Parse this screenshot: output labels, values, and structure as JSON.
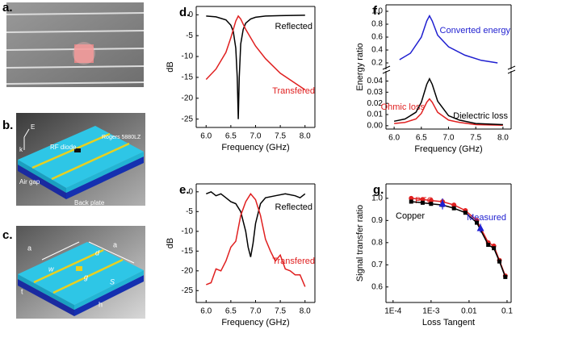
{
  "illustrations": [
    {
      "panel_label": "a."
    },
    {
      "panel_label": "b.",
      "labels": [
        "E",
        "k",
        "Rogers 5880LZ",
        "RF diode",
        "Air gap",
        "Back plate"
      ]
    },
    {
      "panel_label": "c.",
      "labels": [
        "a",
        "a",
        "d",
        "w",
        "g",
        "S",
        "t",
        "h"
      ]
    }
  ],
  "chart_data": [
    {
      "type": "line",
      "panel_label": "d.",
      "xlabel": "Frequency (GHz)",
      "ylabel": "dB",
      "xlim": [
        5.8,
        8.2
      ],
      "xticks": [
        {
          "value": 6,
          "label": "6.0"
        },
        {
          "value": 6.5,
          "label": "6.5"
        },
        {
          "value": 7,
          "label": "7.0"
        },
        {
          "value": 7.5,
          "label": "7.5"
        },
        {
          "value": 8,
          "label": "8.0"
        }
      ],
      "ylim": [
        -27,
        2
      ],
      "yticks": [
        0,
        -5,
        -10,
        -15,
        -20,
        -25
      ],
      "series": [
        {
          "name": "Reflected",
          "color": "#000000",
          "x": [
            6.0,
            6.2,
            6.4,
            6.5,
            6.55,
            6.6,
            6.63,
            6.65,
            6.67,
            6.7,
            6.75,
            6.8,
            6.9,
            7.0,
            7.2,
            7.5,
            8.0
          ],
          "values": [
            -0.3,
            -0.5,
            -1.2,
            -2.5,
            -4,
            -8,
            -15,
            -25,
            -15,
            -7,
            -3.5,
            -2,
            -1,
            -0.6,
            -0.3,
            -0.2,
            -0.1
          ]
        },
        {
          "name": "Transfered",
          "color": "#e02020",
          "x": [
            6.0,
            6.2,
            6.4,
            6.5,
            6.6,
            6.65,
            6.7,
            6.8,
            7.0,
            7.2,
            7.5,
            8.0
          ],
          "values": [
            -15.5,
            -13,
            -9,
            -5.5,
            -1.5,
            -0.3,
            -1,
            -3.5,
            -7.5,
            -10.5,
            -14,
            -18
          ]
        }
      ]
    },
    {
      "type": "line",
      "panel_label": "e.",
      "xlabel": "Frequency (GHz)",
      "ylabel": "dB",
      "xlim": [
        5.8,
        8.2
      ],
      "xticks": [
        {
          "value": 6,
          "label": "6.0"
        },
        {
          "value": 6.5,
          "label": "6.5"
        },
        {
          "value": 7,
          "label": "7.0"
        },
        {
          "value": 7.5,
          "label": "7.5"
        },
        {
          "value": 8,
          "label": "8.0"
        }
      ],
      "ylim": [
        -28,
        2
      ],
      "yticks": [
        0,
        -5,
        -10,
        -15,
        -20,
        -25
      ],
      "series": [
        {
          "name": "Reflected",
          "color": "#000000",
          "x": [
            6.0,
            6.1,
            6.2,
            6.3,
            6.4,
            6.5,
            6.6,
            6.7,
            6.8,
            6.85,
            6.9,
            6.95,
            7.0,
            7.1,
            7.2,
            7.4,
            7.6,
            7.8,
            7.9,
            8.0
          ],
          "values": [
            -0.5,
            0,
            -1,
            -0.5,
            -1.5,
            -2.5,
            -3,
            -5,
            -10,
            -14,
            -16.5,
            -13,
            -8,
            -3,
            -1.5,
            -1,
            -0.5,
            -1,
            -1.5,
            -0.5
          ]
        },
        {
          "name": "Transfered",
          "color": "#e02020",
          "x": [
            6.0,
            6.1,
            6.2,
            6.3,
            6.4,
            6.5,
            6.6,
            6.7,
            6.8,
            6.9,
            7.0,
            7.1,
            7.2,
            7.3,
            7.4,
            7.5,
            7.6,
            7.7,
            7.8,
            7.9,
            8.0
          ],
          "values": [
            -23.5,
            -23,
            -19.5,
            -20,
            -17.5,
            -14,
            -12.5,
            -6,
            -2.5,
            -0.5,
            -2,
            -6,
            -12,
            -15,
            -17.5,
            -16,
            -19.5,
            -20,
            -21,
            -21,
            -24
          ]
        }
      ]
    },
    {
      "type": "line",
      "panel_label": "f.",
      "ylabel": "Energy ratio",
      "xlim": [
        5.85,
        8.15
      ],
      "ylim": [
        0.1,
        1.1
      ],
      "yticks": [
        {
          "value": 0.2,
          "label": "0.2"
        },
        {
          "value": 0.4,
          "label": "0.4"
        },
        {
          "value": 0.6,
          "label": "0.6"
        },
        {
          "value": 0.8,
          "label": "0.8"
        },
        {
          "value": 1,
          "label": "1.0"
        }
      ],
      "series": [
        {
          "name": "Converted energy",
          "color": "#1f1fd0",
          "x": [
            6.1,
            6.3,
            6.5,
            6.6,
            6.65,
            6.7,
            6.8,
            7.0,
            7.3,
            7.6,
            7.9
          ],
          "values": [
            0.25,
            0.35,
            0.6,
            0.85,
            0.93,
            0.85,
            0.63,
            0.45,
            0.32,
            0.24,
            0.2
          ]
        }
      ]
    },
    {
      "type": "line",
      "xlabel": "Frequency (GHz)",
      "xlim": [
        5.85,
        8.15
      ],
      "xticks": [
        {
          "value": 6,
          "label": "6.0"
        },
        {
          "value": 6.5,
          "label": "6.5"
        },
        {
          "value": 7,
          "label": "7.0"
        },
        {
          "value": 7.5,
          "label": "7.5"
        },
        {
          "value": 8,
          "label": "8.0"
        }
      ],
      "ylim": [
        -0.003,
        0.049
      ],
      "yticks": [
        {
          "value": 0,
          "label": "0.00"
        },
        {
          "value": 0.01,
          "label": "0.01"
        },
        {
          "value": 0.02,
          "label": "0.02"
        },
        {
          "value": 0.03,
          "label": "0.03"
        },
        {
          "value": 0.04,
          "label": "0.04"
        }
      ],
      "series": [
        {
          "name": "Ohmic loss",
          "color": "#e02020",
          "x": [
            6.0,
            6.2,
            6.4,
            6.5,
            6.6,
            6.65,
            6.7,
            6.8,
            7.0,
            7.2,
            7.5,
            8.0
          ],
          "values": [
            0.002,
            0.003,
            0.006,
            0.011,
            0.021,
            0.024,
            0.021,
            0.012,
            0.005,
            0.003,
            0.001,
            0.0005
          ]
        },
        {
          "name": "Dielectric loss",
          "color": "#000000",
          "x": [
            6.0,
            6.2,
            6.4,
            6.5,
            6.6,
            6.65,
            6.7,
            6.8,
            7.0,
            7.2,
            7.5,
            8.0
          ],
          "values": [
            0.004,
            0.006,
            0.012,
            0.021,
            0.037,
            0.042,
            0.037,
            0.022,
            0.009,
            0.005,
            0.002,
            0.001
          ]
        }
      ]
    },
    {
      "type": "line",
      "panel_label": "g.",
      "xlabel": "Loss Tangent",
      "ylabel": "Signal transfer ratio",
      "log_x": true,
      "xlim": [
        6.5e-05,
        0.128
      ],
      "xticks": [
        {
          "value": 0.0001,
          "label": "1E-4"
        },
        {
          "value": 0.001,
          "label": "1E-3"
        },
        0.01,
        0.1
      ],
      "ylim": [
        0.53,
        1.065
      ],
      "yticks": [
        {
          "value": 0.6,
          "label": "0.6"
        },
        {
          "value": 0.7,
          "label": "0.7"
        },
        {
          "value": 0.8,
          "label": "0.8"
        },
        {
          "value": 0.9,
          "label": "0.9"
        },
        {
          "value": 1,
          "label": "1.0"
        }
      ],
      "series": [
        {
          "name": "PEC",
          "color": "#e02020",
          "marker": "circle",
          "x": [
            0.0003,
            0.0006,
            0.001,
            0.002,
            0.004,
            0.008,
            0.016,
            0.032,
            0.045,
            0.063,
            0.09
          ],
          "values": [
            1.0,
            0.995,
            0.99,
            0.985,
            0.97,
            0.945,
            0.9,
            0.8,
            0.785,
            0.72,
            0.65
          ]
        },
        {
          "name": "Copper",
          "color": "#000000",
          "marker": "square",
          "x": [
            0.0003,
            0.0006,
            0.001,
            0.002,
            0.004,
            0.008,
            0.016,
            0.032,
            0.045,
            0.063,
            0.09
          ],
          "values": [
            0.985,
            0.98,
            0.975,
            0.97,
            0.955,
            0.935,
            0.89,
            0.79,
            0.775,
            0.715,
            0.645
          ]
        },
        {
          "name": "Measured",
          "color": "#1f1fd0",
          "marker": "triangle",
          "line": false,
          "x": [
            0.002,
            0.02
          ],
          "values": [
            0.975,
            0.865
          ],
          "errors": [
            0.025,
            0.02
          ]
        }
      ]
    }
  ]
}
